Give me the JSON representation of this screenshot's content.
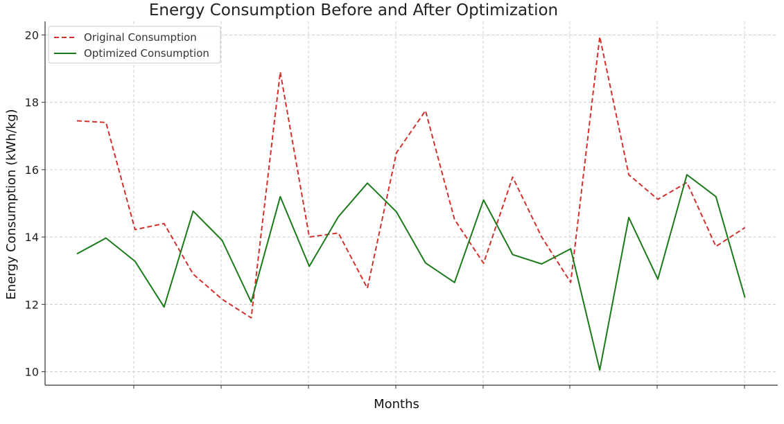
{
  "chart_data": {
    "type": "line",
    "title": "Energy Consumption Before and After Optimization",
    "xlabel": "Months",
    "ylabel": "Energy Consumption (kWh/kg)",
    "x": [
      1,
      2,
      3,
      4,
      5,
      6,
      7,
      8,
      9,
      10,
      11,
      12,
      13,
      14,
      15,
      16,
      17,
      18,
      19,
      20,
      21,
      22,
      23,
      24
    ],
    "ylim": [
      9.6,
      20.4
    ],
    "yticks": [
      10,
      12,
      14,
      16,
      18,
      20
    ],
    "grid": true,
    "legend_position": "top-left",
    "series": [
      {
        "name": "Original Consumption",
        "color": "#d0312d",
        "style": "dashed",
        "values": [
          17.45,
          17.4,
          14.22,
          14.4,
          12.9,
          12.15,
          11.6,
          18.9,
          14.0,
          14.12,
          12.48,
          16.5,
          17.75,
          14.52,
          13.22,
          15.78,
          14.0,
          12.65,
          19.95,
          15.85,
          15.12,
          15.62,
          13.72,
          14.28
        ]
      },
      {
        "name": "Optimized Consumption",
        "color": "#1a7a1a",
        "style": "solid",
        "values": [
          13.5,
          13.97,
          13.28,
          11.92,
          14.77,
          13.9,
          12.07,
          15.2,
          13.13,
          14.6,
          15.6,
          14.75,
          13.23,
          12.65,
          15.1,
          13.48,
          13.2,
          13.65,
          10.05,
          14.58,
          12.75,
          15.85,
          15.2,
          12.2
        ]
      }
    ]
  }
}
